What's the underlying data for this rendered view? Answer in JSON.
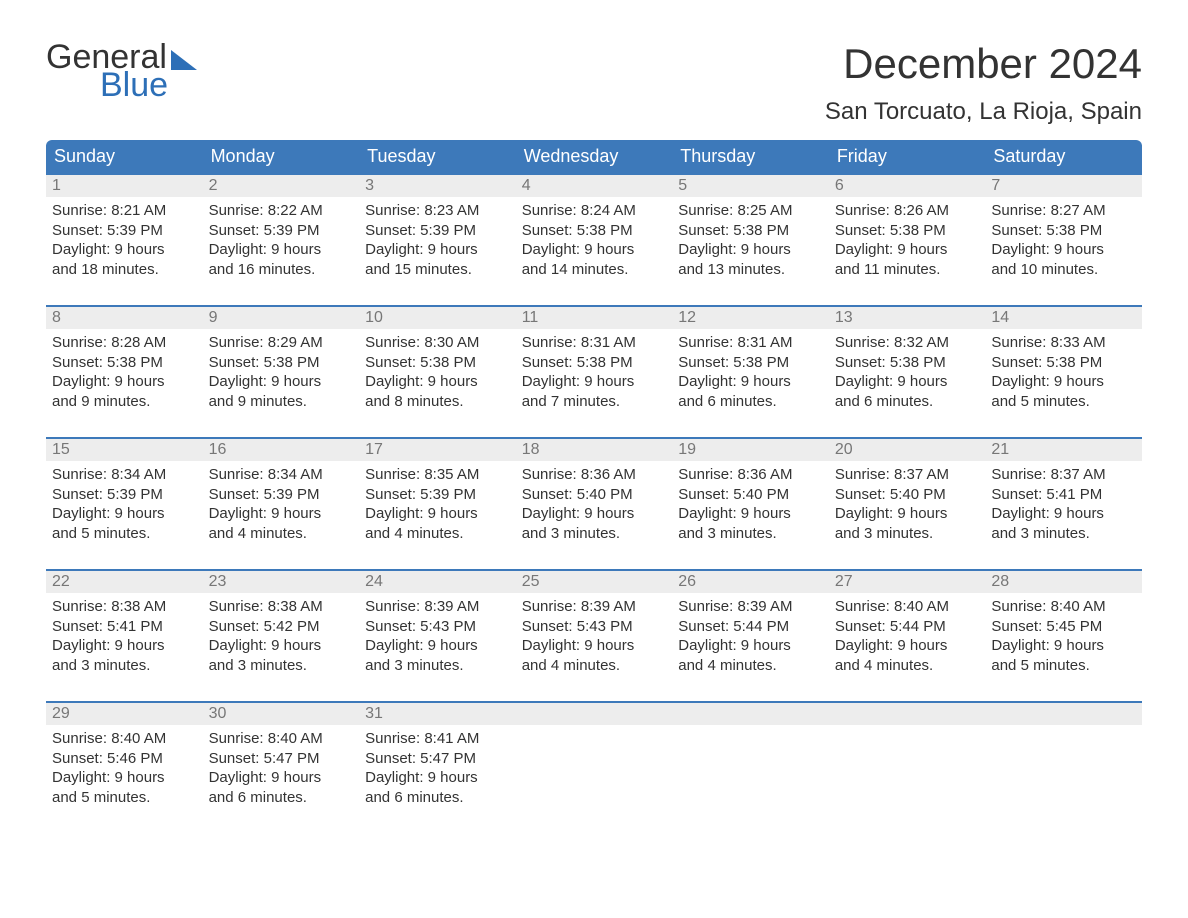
{
  "brand": {
    "word1": "General",
    "word2": "Blue",
    "word2_color": "#2d6fb7"
  },
  "title": "December 2024",
  "location": "San Torcuato, La Rioja, Spain",
  "colors": {
    "header_bg": "#3d79ba",
    "header_text": "#ffffff",
    "daynum_bg": "#ededed",
    "daynum_border": "#3d79ba",
    "daynum_text": "#777777",
    "body_text": "#333333",
    "page_bg": "#ffffff"
  },
  "weekdays": [
    "Sunday",
    "Monday",
    "Tuesday",
    "Wednesday",
    "Thursday",
    "Friday",
    "Saturday"
  ],
  "weeks": [
    [
      {
        "n": "1",
        "sunrise": "Sunrise: 8:21 AM",
        "sunset": "Sunset: 5:39 PM",
        "dl1": "Daylight: 9 hours",
        "dl2": "and 18 minutes."
      },
      {
        "n": "2",
        "sunrise": "Sunrise: 8:22 AM",
        "sunset": "Sunset: 5:39 PM",
        "dl1": "Daylight: 9 hours",
        "dl2": "and 16 minutes."
      },
      {
        "n": "3",
        "sunrise": "Sunrise: 8:23 AM",
        "sunset": "Sunset: 5:39 PM",
        "dl1": "Daylight: 9 hours",
        "dl2": "and 15 minutes."
      },
      {
        "n": "4",
        "sunrise": "Sunrise: 8:24 AM",
        "sunset": "Sunset: 5:38 PM",
        "dl1": "Daylight: 9 hours",
        "dl2": "and 14 minutes."
      },
      {
        "n": "5",
        "sunrise": "Sunrise: 8:25 AM",
        "sunset": "Sunset: 5:38 PM",
        "dl1": "Daylight: 9 hours",
        "dl2": "and 13 minutes."
      },
      {
        "n": "6",
        "sunrise": "Sunrise: 8:26 AM",
        "sunset": "Sunset: 5:38 PM",
        "dl1": "Daylight: 9 hours",
        "dl2": "and 11 minutes."
      },
      {
        "n": "7",
        "sunrise": "Sunrise: 8:27 AM",
        "sunset": "Sunset: 5:38 PM",
        "dl1": "Daylight: 9 hours",
        "dl2": "and 10 minutes."
      }
    ],
    [
      {
        "n": "8",
        "sunrise": "Sunrise: 8:28 AM",
        "sunset": "Sunset: 5:38 PM",
        "dl1": "Daylight: 9 hours",
        "dl2": "and 9 minutes."
      },
      {
        "n": "9",
        "sunrise": "Sunrise: 8:29 AM",
        "sunset": "Sunset: 5:38 PM",
        "dl1": "Daylight: 9 hours",
        "dl2": "and 9 minutes."
      },
      {
        "n": "10",
        "sunrise": "Sunrise: 8:30 AM",
        "sunset": "Sunset: 5:38 PM",
        "dl1": "Daylight: 9 hours",
        "dl2": "and 8 minutes."
      },
      {
        "n": "11",
        "sunrise": "Sunrise: 8:31 AM",
        "sunset": "Sunset: 5:38 PM",
        "dl1": "Daylight: 9 hours",
        "dl2": "and 7 minutes."
      },
      {
        "n": "12",
        "sunrise": "Sunrise: 8:31 AM",
        "sunset": "Sunset: 5:38 PM",
        "dl1": "Daylight: 9 hours",
        "dl2": "and 6 minutes."
      },
      {
        "n": "13",
        "sunrise": "Sunrise: 8:32 AM",
        "sunset": "Sunset: 5:38 PM",
        "dl1": "Daylight: 9 hours",
        "dl2": "and 6 minutes."
      },
      {
        "n": "14",
        "sunrise": "Sunrise: 8:33 AM",
        "sunset": "Sunset: 5:38 PM",
        "dl1": "Daylight: 9 hours",
        "dl2": "and 5 minutes."
      }
    ],
    [
      {
        "n": "15",
        "sunrise": "Sunrise: 8:34 AM",
        "sunset": "Sunset: 5:39 PM",
        "dl1": "Daylight: 9 hours",
        "dl2": "and 5 minutes."
      },
      {
        "n": "16",
        "sunrise": "Sunrise: 8:34 AM",
        "sunset": "Sunset: 5:39 PM",
        "dl1": "Daylight: 9 hours",
        "dl2": "and 4 minutes."
      },
      {
        "n": "17",
        "sunrise": "Sunrise: 8:35 AM",
        "sunset": "Sunset: 5:39 PM",
        "dl1": "Daylight: 9 hours",
        "dl2": "and 4 minutes."
      },
      {
        "n": "18",
        "sunrise": "Sunrise: 8:36 AM",
        "sunset": "Sunset: 5:40 PM",
        "dl1": "Daylight: 9 hours",
        "dl2": "and 3 minutes."
      },
      {
        "n": "19",
        "sunrise": "Sunrise: 8:36 AM",
        "sunset": "Sunset: 5:40 PM",
        "dl1": "Daylight: 9 hours",
        "dl2": "and 3 minutes."
      },
      {
        "n": "20",
        "sunrise": "Sunrise: 8:37 AM",
        "sunset": "Sunset: 5:40 PM",
        "dl1": "Daylight: 9 hours",
        "dl2": "and 3 minutes."
      },
      {
        "n": "21",
        "sunrise": "Sunrise: 8:37 AM",
        "sunset": "Sunset: 5:41 PM",
        "dl1": "Daylight: 9 hours",
        "dl2": "and 3 minutes."
      }
    ],
    [
      {
        "n": "22",
        "sunrise": "Sunrise: 8:38 AM",
        "sunset": "Sunset: 5:41 PM",
        "dl1": "Daylight: 9 hours",
        "dl2": "and 3 minutes."
      },
      {
        "n": "23",
        "sunrise": "Sunrise: 8:38 AM",
        "sunset": "Sunset: 5:42 PM",
        "dl1": "Daylight: 9 hours",
        "dl2": "and 3 minutes."
      },
      {
        "n": "24",
        "sunrise": "Sunrise: 8:39 AM",
        "sunset": "Sunset: 5:43 PM",
        "dl1": "Daylight: 9 hours",
        "dl2": "and 3 minutes."
      },
      {
        "n": "25",
        "sunrise": "Sunrise: 8:39 AM",
        "sunset": "Sunset: 5:43 PM",
        "dl1": "Daylight: 9 hours",
        "dl2": "and 4 minutes."
      },
      {
        "n": "26",
        "sunrise": "Sunrise: 8:39 AM",
        "sunset": "Sunset: 5:44 PM",
        "dl1": "Daylight: 9 hours",
        "dl2": "and 4 minutes."
      },
      {
        "n": "27",
        "sunrise": "Sunrise: 8:40 AM",
        "sunset": "Sunset: 5:44 PM",
        "dl1": "Daylight: 9 hours",
        "dl2": "and 4 minutes."
      },
      {
        "n": "28",
        "sunrise": "Sunrise: 8:40 AM",
        "sunset": "Sunset: 5:45 PM",
        "dl1": "Daylight: 9 hours",
        "dl2": "and 5 minutes."
      }
    ],
    [
      {
        "n": "29",
        "sunrise": "Sunrise: 8:40 AM",
        "sunset": "Sunset: 5:46 PM",
        "dl1": "Daylight: 9 hours",
        "dl2": "and 5 minutes."
      },
      {
        "n": "30",
        "sunrise": "Sunrise: 8:40 AM",
        "sunset": "Sunset: 5:47 PM",
        "dl1": "Daylight: 9 hours",
        "dl2": "and 6 minutes."
      },
      {
        "n": "31",
        "sunrise": "Sunrise: 8:41 AM",
        "sunset": "Sunset: 5:47 PM",
        "dl1": "Daylight: 9 hours",
        "dl2": "and 6 minutes."
      },
      {
        "empty": true
      },
      {
        "empty": true
      },
      {
        "empty": true
      },
      {
        "empty": true
      }
    ]
  ]
}
